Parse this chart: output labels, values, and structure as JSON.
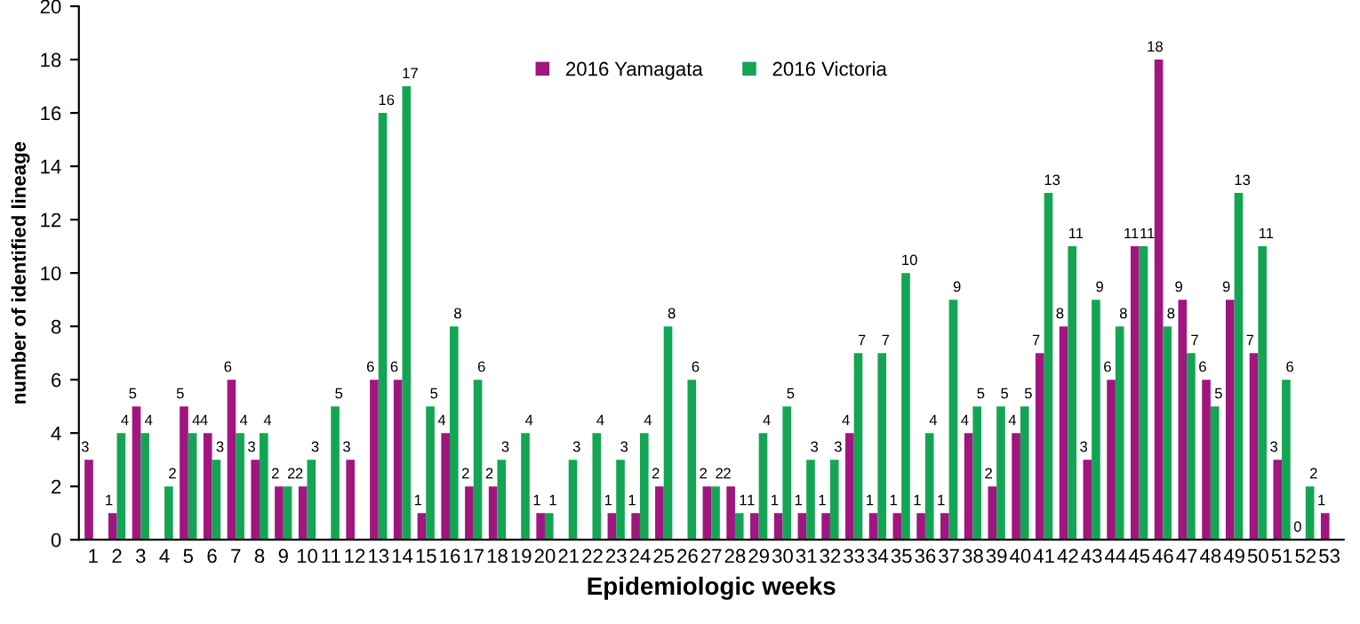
{
  "chart_data": {
    "type": "bar",
    "xlabel": "Epidemiologic weeks",
    "ylabel": "number of identified lineage",
    "categories": [
      "1",
      "2",
      "3",
      "4",
      "5",
      "6",
      "7",
      "8",
      "9",
      "10",
      "11",
      "12",
      "13",
      "14",
      "15",
      "16",
      "17",
      "18",
      "19",
      "20",
      "21",
      "22",
      "23",
      "24",
      "25",
      "26",
      "27",
      "28",
      "29",
      "30",
      "31",
      "32",
      "33",
      "34",
      "35",
      "36",
      "37",
      "38",
      "39",
      "40",
      "41",
      "42",
      "43",
      "44",
      "45",
      "46",
      "47",
      "48",
      "49",
      "50",
      "51",
      "52",
      "53"
    ],
    "series": [
      {
        "name": "2016 Yamagata",
        "color": "#a0167e",
        "values": [
          3,
          1,
          5,
          null,
          5,
          4,
          6,
          3,
          2,
          2,
          null,
          3,
          6,
          6,
          1,
          4,
          2,
          2,
          null,
          1,
          null,
          null,
          1,
          1,
          2,
          null,
          2,
          2,
          1,
          1,
          1,
          1,
          4,
          1,
          1,
          1,
          1,
          4,
          2,
          4,
          7,
          8,
          3,
          6,
          11,
          18,
          9,
          6,
          9,
          7,
          3,
          0,
          1
        ]
      },
      {
        "name": "2016 Victoria",
        "color": "#14a554",
        "values": [
          null,
          4,
          4,
          2,
          4,
          3,
          4,
          4,
          2,
          3,
          5,
          null,
          16,
          17,
          5,
          8,
          6,
          3,
          4,
          1,
          3,
          4,
          3,
          4,
          8,
          6,
          2,
          1,
          4,
          5,
          3,
          3,
          7,
          7,
          10,
          4,
          9,
          5,
          5,
          5,
          13,
          11,
          9,
          8,
          11,
          8,
          7,
          5,
          13,
          11,
          6,
          2,
          null
        ]
      }
    ],
    "ylim": [
      0,
      20
    ],
    "yticks": [
      0,
      2,
      4,
      6,
      8,
      10,
      12,
      14,
      16,
      18,
      20
    ],
    "grid": false,
    "legend": "top",
    "data_labels": true
  }
}
